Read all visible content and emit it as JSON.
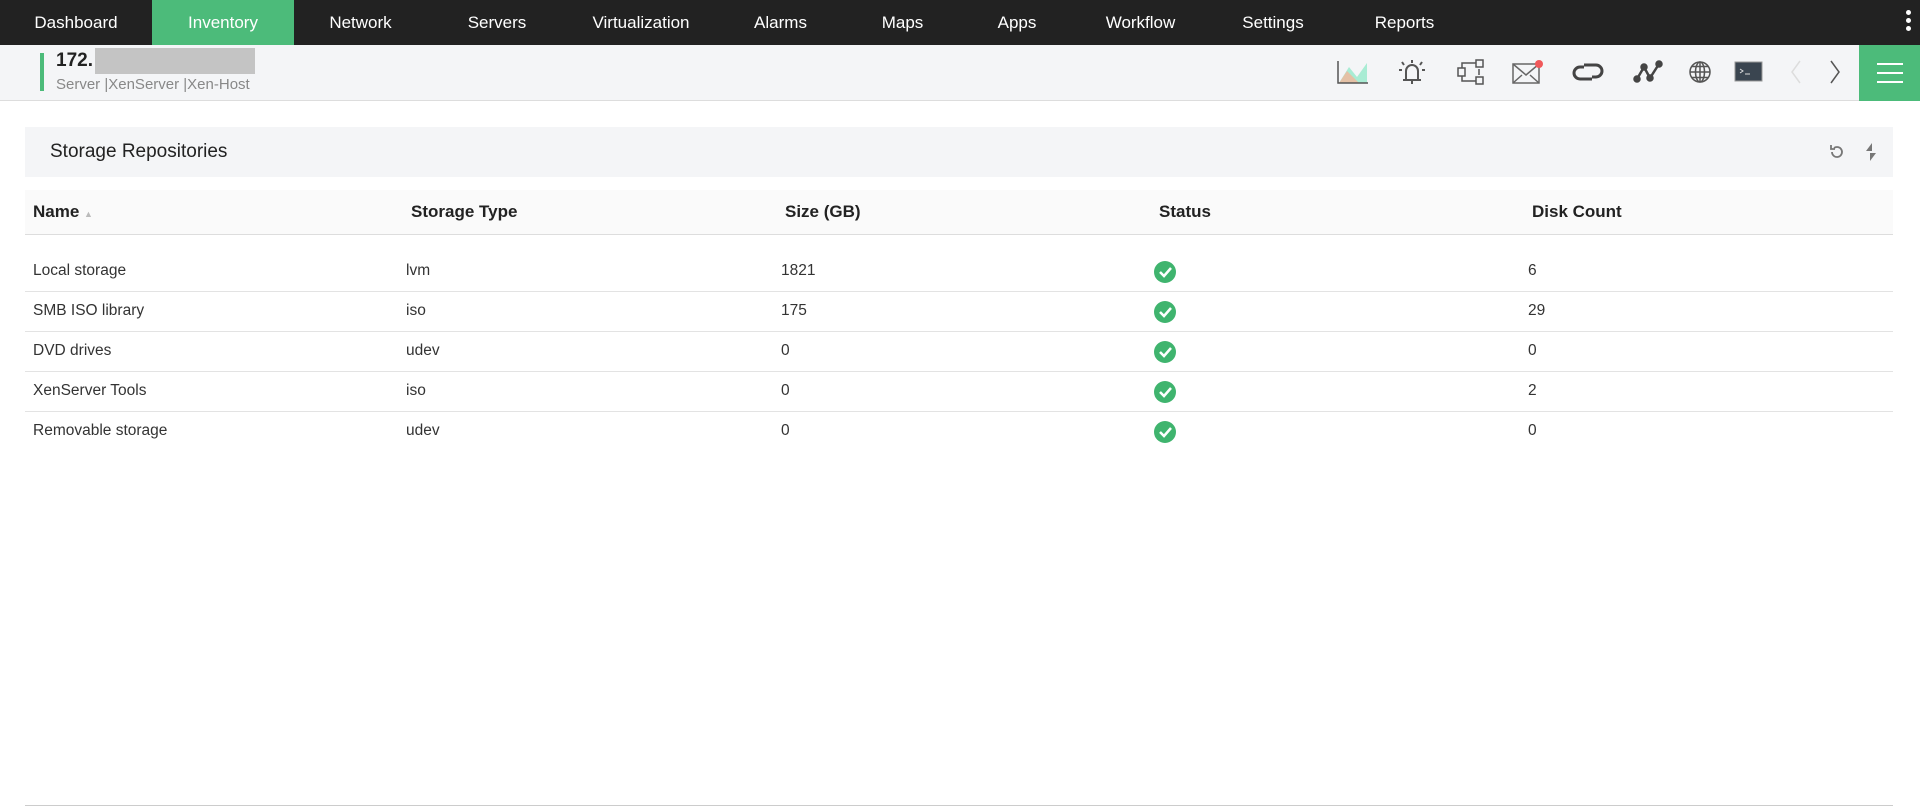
{
  "nav": {
    "items": [
      "Dashboard",
      "Inventory",
      "Network",
      "Servers",
      "Virtualization",
      "Alarms",
      "Maps",
      "Apps",
      "Workflow",
      "Settings",
      "Reports"
    ],
    "active": "Inventory"
  },
  "device": {
    "ip_prefix": "172.",
    "breadcrumb": "Server |XenServer  |Xen-Host"
  },
  "toolbar_icons": [
    "chart-icon",
    "alarm-bell-icon",
    "workflow-icon",
    "mail-icon",
    "sync-icon",
    "graph-icon",
    "globe-icon",
    "terminal-icon",
    "chevron-left-icon",
    "chevron-right-icon",
    "hamburger-menu-icon"
  ],
  "panel": {
    "title": "Storage Repositories"
  },
  "table": {
    "columns": [
      "Name",
      "Storage Type",
      "Size (GB)",
      "Status",
      "Disk Count"
    ],
    "rows": [
      {
        "name": "Local storage",
        "type": "lvm",
        "size": "1821",
        "status": "ok",
        "disks": "6"
      },
      {
        "name": "SMB ISO library",
        "type": "iso",
        "size": "175",
        "status": "ok",
        "disks": "29"
      },
      {
        "name": "DVD drives",
        "type": "udev",
        "size": "0",
        "status": "ok",
        "disks": "0"
      },
      {
        "name": "XenServer Tools",
        "type": "iso",
        "size": "0",
        "status": "ok",
        "disks": "2"
      },
      {
        "name": "Removable storage",
        "type": "udev",
        "size": "0",
        "status": "ok",
        "disks": "0"
      }
    ]
  },
  "colors": {
    "accent": "#4cbb7a",
    "nav_bg": "#222222",
    "status_ok": "#3fb46e"
  }
}
